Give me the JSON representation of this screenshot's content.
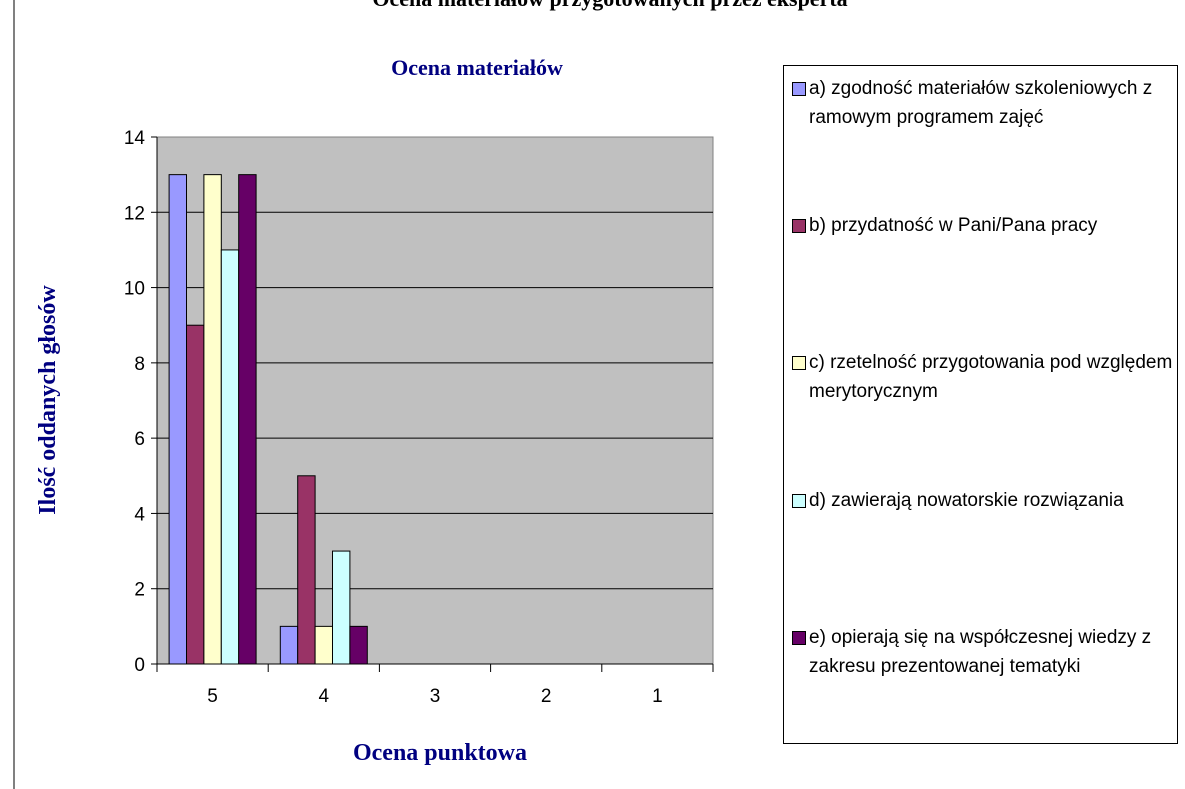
{
  "chart_data": {
    "type": "bar",
    "header": "Ocena materiałów przygotowanych przez eksperta",
    "title": "Ocena materiałów",
    "y_label": "Ilość oddanych głosów",
    "x_label": "Ocena punktowa",
    "categories": [
      "5",
      "4",
      "3",
      "2",
      "1"
    ],
    "series": [
      {
        "name": "a) zgodność materiałów szkoleniowych z ramowym programem zajęć",
        "color": "#9999ff",
        "values": [
          13,
          1,
          0,
          0,
          0
        ]
      },
      {
        "name": "b) przydatność w Pani/Pana pracy",
        "color": "#993366",
        "values": [
          9,
          5,
          0,
          0,
          0
        ]
      },
      {
        "name": "c) rzetelność przygotowania pod względem merytorycznym",
        "color": "#ffffcc",
        "values": [
          13,
          1,
          0,
          0,
          0
        ]
      },
      {
        "name": "d) zawierają nowatorskie rozwiązania",
        "color": "#ccffff",
        "values": [
          11,
          3,
          0,
          0,
          0
        ]
      },
      {
        "name": "e) opierają się na współczesnej wiedzy z zakresu prezentowanej tematyki",
        "color": "#660066",
        "values": [
          13,
          1,
          0,
          0,
          0
        ]
      }
    ],
    "ylim": [
      0,
      14
    ],
    "yticks": [
      0,
      2,
      4,
      6,
      8,
      10,
      12,
      14
    ],
    "grid": true,
    "legend": "right"
  }
}
